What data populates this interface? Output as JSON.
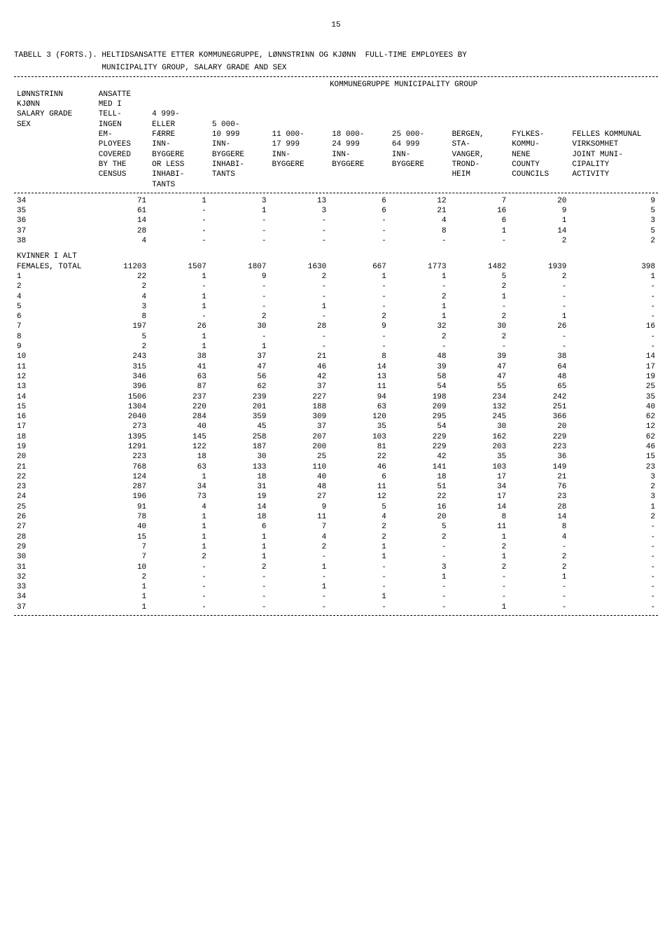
{
  "page_number": "15",
  "title_line1": "TABELL 3 (FORTS.). HELTIDSANSATTE ETTER KOMMUNEGRUPPE, LØNNSTRINN OG KJØNN  FULL-TIME EMPLOYEES BY",
  "title_line2": "                   MUNICIPALITY GROUP, SALARY GRADE AND SEX",
  "super_header": "KOMMUNEGRUPPE  MUNICIPALITY GROUP",
  "row_header_lines": [
    "LØNNSTRINN",
    "KJØNN",
    "SALARY GRADE",
    "SEX"
  ],
  "col_headers": [
    [
      "ANSATTE",
      "MED I",
      "TELL-",
      "INGEN",
      "EM-",
      "PLOYEES",
      "COVERED",
      "BY THE",
      "CENSUS"
    ],
    [
      "",
      "",
      "4 999-",
      "ELLER",
      "FÆRRE",
      "INN-",
      "BYGGERE",
      "OR LESS",
      "INHABI-",
      "TANTS"
    ],
    [
      "",
      "",
      "",
      "5 000-",
      "10 999",
      "INN-",
      "BYGGERE",
      "INHABI-",
      "TANTS"
    ],
    [
      "",
      "",
      "",
      "",
      "11 000-",
      "17 999",
      "INN-",
      "BYGGERE"
    ],
    [
      "",
      "",
      "",
      "",
      "18 000-",
      "24 999",
      "INN-",
      "BYGGERE"
    ],
    [
      "",
      "",
      "",
      "",
      "25 000-",
      "64 999",
      "INN-",
      "BYGGERE"
    ],
    [
      "",
      "",
      "",
      "",
      "BERGEN,",
      "STA-",
      "VANGER,",
      "TROND-",
      "HEIM"
    ],
    [
      "",
      "",
      "",
      "",
      "FYLKES-",
      "KOMMU-",
      "NENE",
      "COUNTY",
      "COUNCILS"
    ],
    [
      "",
      "",
      "",
      "",
      "FELLES KOMMUNAL",
      "VIRKSOMHET",
      "JOINT MUNI-",
      "CIPALITY",
      "ACTIVITY"
    ]
  ],
  "top_rows": [
    {
      "label": "34",
      "cells": [
        "71",
        "1",
        "3",
        "13",
        "6",
        "12",
        "7",
        "20",
        "9"
      ]
    },
    {
      "label": "35",
      "cells": [
        "61",
        "-",
        "1",
        "3",
        "6",
        "21",
        "16",
        "9",
        "5"
      ]
    },
    {
      "label": "36",
      "cells": [
        "14",
        "-",
        "-",
        "-",
        "-",
        "4",
        "6",
        "1",
        "3"
      ]
    },
    {
      "label": "37",
      "cells": [
        "28",
        "-",
        "-",
        "-",
        "-",
        "8",
        "1",
        "14",
        "5"
      ]
    },
    {
      "label": "38",
      "cells": [
        "4",
        "-",
        "-",
        "-",
        "-",
        "-",
        "-",
        "2",
        "2"
      ]
    }
  ],
  "section_label1": "KVINNER I ALT",
  "section_label2": "FEMALES, TOTAL",
  "section_totals": [
    "11203",
    "1507",
    "1807",
    "1630",
    "667",
    "1773",
    "1482",
    "1939",
    "398"
  ],
  "main_rows": [
    {
      "label": "1",
      "cells": [
        "22",
        "1",
        "9",
        "2",
        "1",
        "1",
        "5",
        "2",
        "1"
      ]
    },
    {
      "label": "2",
      "cells": [
        "2",
        "-",
        "-",
        "-",
        "-",
        "-",
        "2",
        "-",
        "-"
      ]
    },
    {
      "label": "4",
      "cells": [
        "4",
        "1",
        "-",
        "-",
        "-",
        "2",
        "1",
        "-",
        "-"
      ]
    },
    {
      "label": "5",
      "cells": [
        "3",
        "1",
        "-",
        "1",
        "-",
        "1",
        "-",
        "-",
        "-"
      ]
    },
    {
      "label": "6",
      "cells": [
        "8",
        "-",
        "2",
        "-",
        "2",
        "1",
        "2",
        "1",
        "-"
      ]
    },
    {
      "label": "7",
      "cells": [
        "197",
        "26",
        "30",
        "28",
        "9",
        "32",
        "30",
        "26",
        "16"
      ]
    },
    {
      "label": "8",
      "cells": [
        "5",
        "1",
        "-",
        "-",
        "-",
        "2",
        "2",
        "-",
        "-"
      ]
    },
    {
      "label": "9",
      "cells": [
        "2",
        "1",
        "1",
        "-",
        "-",
        "-",
        "-",
        "-",
        "-"
      ]
    },
    {
      "label": "10",
      "cells": [
        "243",
        "38",
        "37",
        "21",
        "8",
        "48",
        "39",
        "38",
        "14"
      ]
    },
    {
      "label": "11",
      "cells": [
        "315",
        "41",
        "47",
        "46",
        "14",
        "39",
        "47",
        "64",
        "17"
      ]
    },
    {
      "label": "12",
      "cells": [
        "346",
        "63",
        "56",
        "42",
        "13",
        "58",
        "47",
        "48",
        "19"
      ]
    },
    {
      "label": "13",
      "cells": [
        "396",
        "87",
        "62",
        "37",
        "11",
        "54",
        "55",
        "65",
        "25"
      ]
    },
    {
      "label": "14",
      "cells": [
        "1506",
        "237",
        "239",
        "227",
        "94",
        "198",
        "234",
        "242",
        "35"
      ]
    },
    {
      "label": "15",
      "cells": [
        "1304",
        "220",
        "201",
        "188",
        "63",
        "209",
        "132",
        "251",
        "40"
      ]
    },
    {
      "label": "16",
      "cells": [
        "2040",
        "284",
        "359",
        "309",
        "120",
        "295",
        "245",
        "366",
        "62"
      ]
    },
    {
      "label": "17",
      "cells": [
        "273",
        "40",
        "45",
        "37",
        "35",
        "54",
        "30",
        "20",
        "12"
      ]
    },
    {
      "label": "18",
      "cells": [
        "1395",
        "145",
        "258",
        "207",
        "103",
        "229",
        "162",
        "229",
        "62"
      ]
    },
    {
      "label": "19",
      "cells": [
        "1291",
        "122",
        "187",
        "200",
        "81",
        "229",
        "203",
        "223",
        "46"
      ]
    },
    {
      "label": "20",
      "cells": [
        "223",
        "18",
        "30",
        "25",
        "22",
        "42",
        "35",
        "36",
        "15"
      ]
    },
    {
      "label": "21",
      "cells": [
        "768",
        "63",
        "133",
        "110",
        "46",
        "141",
        "103",
        "149",
        "23"
      ]
    },
    {
      "label": "22",
      "cells": [
        "124",
        "1",
        "18",
        "40",
        "6",
        "18",
        "17",
        "21",
        "3"
      ]
    },
    {
      "label": "23",
      "cells": [
        "287",
        "34",
        "31",
        "48",
        "11",
        "51",
        "34",
        "76",
        "2"
      ]
    },
    {
      "label": "24",
      "cells": [
        "196",
        "73",
        "19",
        "27",
        "12",
        "22",
        "17",
        "23",
        "3"
      ]
    },
    {
      "label": "25",
      "cells": [
        "91",
        "4",
        "14",
        "9",
        "5",
        "16",
        "14",
        "28",
        "1"
      ]
    },
    {
      "label": "26",
      "cells": [
        "78",
        "1",
        "18",
        "11",
        "4",
        "20",
        "8",
        "14",
        "2"
      ]
    },
    {
      "label": "27",
      "cells": [
        "40",
        "1",
        "6",
        "7",
        "2",
        "5",
        "11",
        "8",
        "-"
      ]
    },
    {
      "label": "28",
      "cells": [
        "15",
        "1",
        "1",
        "4",
        "2",
        "2",
        "1",
        "4",
        "-"
      ]
    },
    {
      "label": "29",
      "cells": [
        "7",
        "1",
        "1",
        "2",
        "1",
        "-",
        "2",
        "-",
        "-"
      ]
    },
    {
      "label": "30",
      "cells": [
        "7",
        "2",
        "1",
        "-",
        "1",
        "-",
        "1",
        "2",
        "-"
      ]
    },
    {
      "label": "31",
      "cells": [
        "10",
        "-",
        "2",
        "1",
        "-",
        "3",
        "2",
        "2",
        "-"
      ]
    },
    {
      "label": "32",
      "cells": [
        "2",
        "-",
        "-",
        "-",
        "-",
        "1",
        "-",
        "1",
        "-"
      ]
    },
    {
      "label": "33",
      "cells": [
        "1",
        "-",
        "-",
        "1",
        "-",
        "-",
        "-",
        "-",
        "-"
      ]
    },
    {
      "label": "34",
      "cells": [
        "1",
        "-",
        "-",
        "-",
        "1",
        "-",
        "-",
        "-",
        "-"
      ]
    },
    {
      "label": "37",
      "cells": [
        "1",
        "-",
        "-",
        "-",
        "-",
        "-",
        "1",
        "-",
        "-"
      ]
    }
  ]
}
